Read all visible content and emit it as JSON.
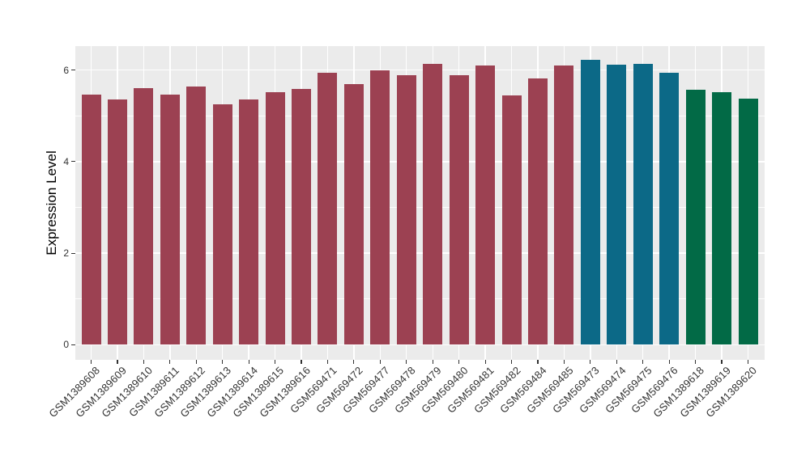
{
  "figure": {
    "background": "#FFFFFF"
  },
  "chart_data": {
    "type": "bar",
    "title": "",
    "xlabel": "",
    "ylabel": "Expression Level",
    "yticks": [
      0,
      2,
      4,
      6
    ],
    "yticks_minor": [
      1,
      3,
      5
    ],
    "ylim": [
      0,
      6.52
    ],
    "grid": true,
    "legend": false,
    "panel_background": "#EBEBEB",
    "grid_color": "#FFFFFF",
    "axis_text_color": "#333333",
    "categories": [
      "GSM1389608",
      "GSM1389609",
      "GSM1389610",
      "GSM1389611",
      "GSM1389612",
      "GSM1389613",
      "GSM1389614",
      "GSM1389615",
      "GSM1389616",
      "GSM569471",
      "GSM569472",
      "GSM569477",
      "GSM569478",
      "GSM569479",
      "GSM569480",
      "GSM569481",
      "GSM569482",
      "GSM569484",
      "GSM569485",
      "GSM569473",
      "GSM569474",
      "GSM569475",
      "GSM569476",
      "GSM1389618",
      "GSM1389619",
      "GSM1389620"
    ],
    "values": [
      5.47,
      5.35,
      5.61,
      5.46,
      5.64,
      5.25,
      5.36,
      5.51,
      5.58,
      5.95,
      5.69,
      6.0,
      5.89,
      6.14,
      5.88,
      6.1,
      5.45,
      5.81,
      6.1,
      6.23,
      6.12,
      6.13,
      5.95,
      5.57,
      5.51,
      5.38
    ],
    "palette": [
      "#9C4152",
      "#0C6987",
      "#026A46"
    ],
    "bar_color_index": [
      0,
      0,
      0,
      0,
      0,
      0,
      0,
      0,
      0,
      0,
      0,
      0,
      0,
      0,
      0,
      0,
      0,
      0,
      0,
      1,
      1,
      1,
      1,
      2,
      2,
      2
    ]
  }
}
